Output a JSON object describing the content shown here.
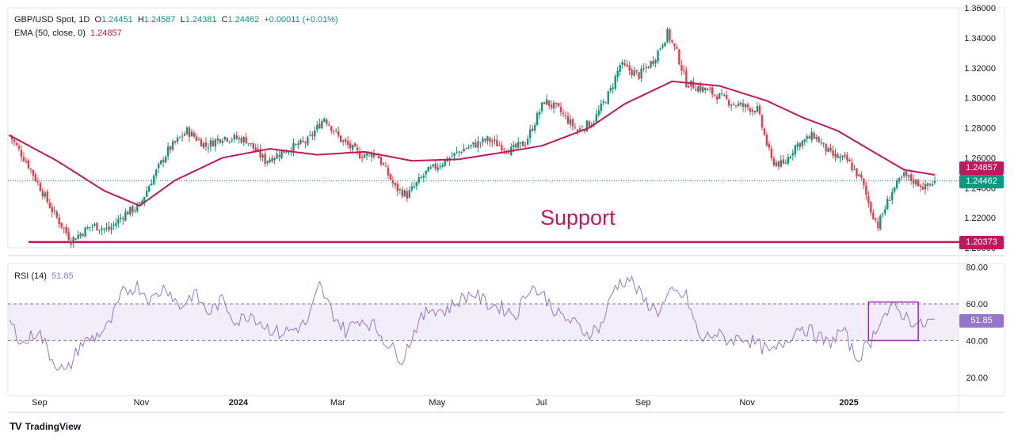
{
  "legend": {
    "symbol": "GBP/USD Spot, 1D",
    "open_key": "O",
    "open": "1.24451",
    "high_key": "H",
    "high": "1.24587",
    "low_key": "L",
    "low": "1.24381",
    "close_key": "C",
    "close": "1.24462",
    "change": "+0.00011 (+0.01%)",
    "ema_label": "EMA (50, close, 0)",
    "ema_value": "1.24857",
    "rsi_label": "RSI (14)",
    "rsi_value": "51.85"
  },
  "annotation": {
    "support": "Support"
  },
  "price_tags": {
    "ema": "1.24857",
    "close": "1.24462",
    "support": "1.20373",
    "rsi": "51.85"
  },
  "footer": {
    "brand": "TradingView",
    "logo": "TV"
  },
  "colors": {
    "up": "#089981",
    "down": "#f23645",
    "ema": "#c2185b",
    "support": "#c2185b",
    "rsi": "#9575cd",
    "rsi_band": "#ede7f6",
    "close_tag": "#089981"
  },
  "chart_data": [
    {
      "type": "candlestick",
      "y_ticks": [
        "1.36000",
        "1.34000",
        "1.32000",
        "1.30000",
        "1.28000",
        "1.26000",
        "1.24000",
        "1.22000",
        "1.20000"
      ],
      "ylim": [
        1.2,
        1.36
      ],
      "x_ticks": [
        "Sep",
        "Nov",
        "2024",
        "Mar",
        "May",
        "Jul",
        "Sep",
        "Nov",
        "2025"
      ],
      "x_tick_positions": [
        4,
        47,
        88,
        130,
        172,
        216,
        259,
        303,
        346
      ],
      "support_level": 1.20373,
      "last_close": 1.24462,
      "ema_last": 1.24857,
      "close_anchors": [
        [
          0,
          1.275
        ],
        [
          8,
          1.255
        ],
        [
          18,
          1.225
        ],
        [
          26,
          1.205
        ],
        [
          35,
          1.215
        ],
        [
          42,
          1.212
        ],
        [
          49,
          1.223
        ],
        [
          55,
          1.228
        ],
        [
          60,
          1.245
        ],
        [
          67,
          1.265
        ],
        [
          75,
          1.278
        ],
        [
          83,
          1.268
        ],
        [
          90,
          1.274
        ],
        [
          100,
          1.272
        ],
        [
          108,
          1.258
        ],
        [
          118,
          1.266
        ],
        [
          126,
          1.271
        ],
        [
          133,
          1.287
        ],
        [
          140,
          1.272
        ],
        [
          148,
          1.262
        ],
        [
          155,
          1.263
        ],
        [
          163,
          1.24
        ],
        [
          168,
          1.235
        ],
        [
          176,
          1.25
        ],
        [
          184,
          1.258
        ],
        [
          192,
          1.266
        ],
        [
          202,
          1.272
        ],
        [
          212,
          1.265
        ],
        [
          218,
          1.27
        ],
        [
          226,
          1.298
        ],
        [
          232,
          1.292
        ],
        [
          240,
          1.278
        ],
        [
          247,
          1.285
        ],
        [
          254,
          1.305
        ],
        [
          258,
          1.322
        ],
        [
          266,
          1.315
        ],
        [
          272,
          1.325
        ],
        [
          278,
          1.343
        ],
        [
          282,
          1.33
        ],
        [
          286,
          1.31
        ],
        [
          296,
          1.304
        ],
        [
          306,
          1.296
        ],
        [
          316,
          1.292
        ],
        [
          322,
          1.258
        ],
        [
          327,
          1.255
        ],
        [
          332,
          1.268
        ],
        [
          340,
          1.275
        ],
        [
          347,
          1.262
        ],
        [
          354,
          1.258
        ],
        [
          360,
          1.245
        ],
        [
          364,
          1.225
        ],
        [
          367,
          1.215
        ],
        [
          373,
          1.238
        ],
        [
          378,
          1.248
        ],
        [
          384,
          1.243
        ],
        [
          387,
          1.24
        ],
        [
          391,
          1.2446
        ]
      ],
      "ema_anchors": [
        [
          0,
          1.275
        ],
        [
          20,
          1.258
        ],
        [
          40,
          1.238
        ],
        [
          55,
          1.228
        ],
        [
          70,
          1.245
        ],
        [
          90,
          1.26
        ],
        [
          110,
          1.266
        ],
        [
          130,
          1.262
        ],
        [
          150,
          1.264
        ],
        [
          170,
          1.258
        ],
        [
          190,
          1.259
        ],
        [
          210,
          1.264
        ],
        [
          225,
          1.268
        ],
        [
          245,
          1.28
        ],
        [
          260,
          1.296
        ],
        [
          280,
          1.311
        ],
        [
          300,
          1.308
        ],
        [
          320,
          1.298
        ],
        [
          335,
          1.287
        ],
        [
          350,
          1.278
        ],
        [
          365,
          1.264
        ],
        [
          378,
          1.252
        ],
        [
          391,
          1.24857
        ]
      ],
      "n_candles": 392
    },
    {
      "type": "line",
      "name": "RSI (14)",
      "y_ticks": [
        "80.00",
        "60.00",
        "40.00",
        "20.00"
      ],
      "ylim": [
        10,
        82
      ],
      "bands": [
        40,
        60
      ],
      "highlight_box": {
        "x0": 363,
        "x1": 384,
        "y0": 40,
        "y1": 61
      },
      "rsi_anchors": [
        [
          0,
          50
        ],
        [
          6,
          38
        ],
        [
          12,
          46
        ],
        [
          18,
          30
        ],
        [
          24,
          22
        ],
        [
          30,
          38
        ],
        [
          36,
          42
        ],
        [
          42,
          48
        ],
        [
          48,
          66
        ],
        [
          54,
          70
        ],
        [
          60,
          62
        ],
        [
          66,
          70
        ],
        [
          72,
          58
        ],
        [
          78,
          66
        ],
        [
          84,
          55
        ],
        [
          90,
          62
        ],
        [
          96,
          50
        ],
        [
          102,
          55
        ],
        [
          108,
          48
        ],
        [
          114,
          44
        ],
        [
          120,
          46
        ],
        [
          126,
          50
        ],
        [
          131,
          70
        ],
        [
          136,
          56
        ],
        [
          142,
          45
        ],
        [
          148,
          52
        ],
        [
          154,
          48
        ],
        [
          160,
          38
        ],
        [
          166,
          30
        ],
        [
          172,
          48
        ],
        [
          178,
          58
        ],
        [
          184,
          56
        ],
        [
          190,
          62
        ],
        [
          196,
          66
        ],
        [
          202,
          60
        ],
        [
          208,
          58
        ],
        [
          214,
          54
        ],
        [
          220,
          70
        ],
        [
          226,
          64
        ],
        [
          232,
          54
        ],
        [
          238,
          50
        ],
        [
          244,
          44
        ],
        [
          250,
          48
        ],
        [
          256,
          70
        ],
        [
          262,
          74
        ],
        [
          268,
          62
        ],
        [
          274,
          56
        ],
        [
          280,
          66
        ],
        [
          286,
          64
        ],
        [
          292,
          40
        ],
        [
          298,
          44
        ],
        [
          304,
          40
        ],
        [
          310,
          42
        ],
        [
          316,
          38
        ],
        [
          322,
          33
        ],
        [
          328,
          40
        ],
        [
          334,
          48
        ],
        [
          340,
          44
        ],
        [
          346,
          38
        ],
        [
          352,
          46
        ],
        [
          358,
          30
        ],
        [
          364,
          40
        ],
        [
          368,
          52
        ],
        [
          374,
          58
        ],
        [
          380,
          52
        ],
        [
          385,
          48
        ],
        [
          391,
          51.85
        ]
      ]
    }
  ]
}
